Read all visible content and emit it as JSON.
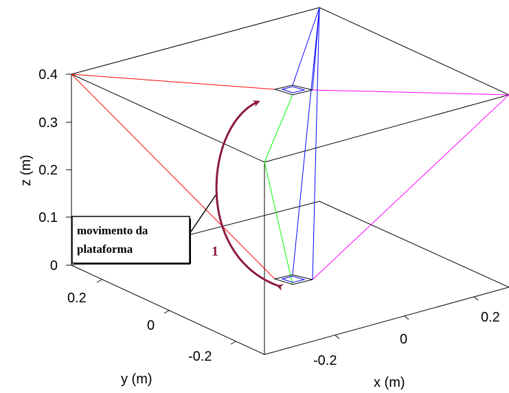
{
  "axes": {
    "z": {
      "label": "z (m)",
      "ticks": [
        "0.4",
        "0.3",
        "0.2",
        "0.1",
        "0"
      ]
    },
    "y": {
      "label": "y (m)",
      "ticks": [
        "0.2",
        "0",
        "-0.2"
      ]
    },
    "x": {
      "label": "x (m)",
      "ticks": [
        "-0.2",
        "0",
        "0.2"
      ]
    }
  },
  "annotation": {
    "line1": "movimento da",
    "line2": "plataforma",
    "step_number": "1"
  },
  "colors": {
    "cable_red": "#ff0000",
    "cable_blue": "#0000ff",
    "cable_green": "#00ff00",
    "cable_magenta": "#ff00ff",
    "motion_arrow": "#8b1a3a",
    "box_edges": "#000000"
  }
}
